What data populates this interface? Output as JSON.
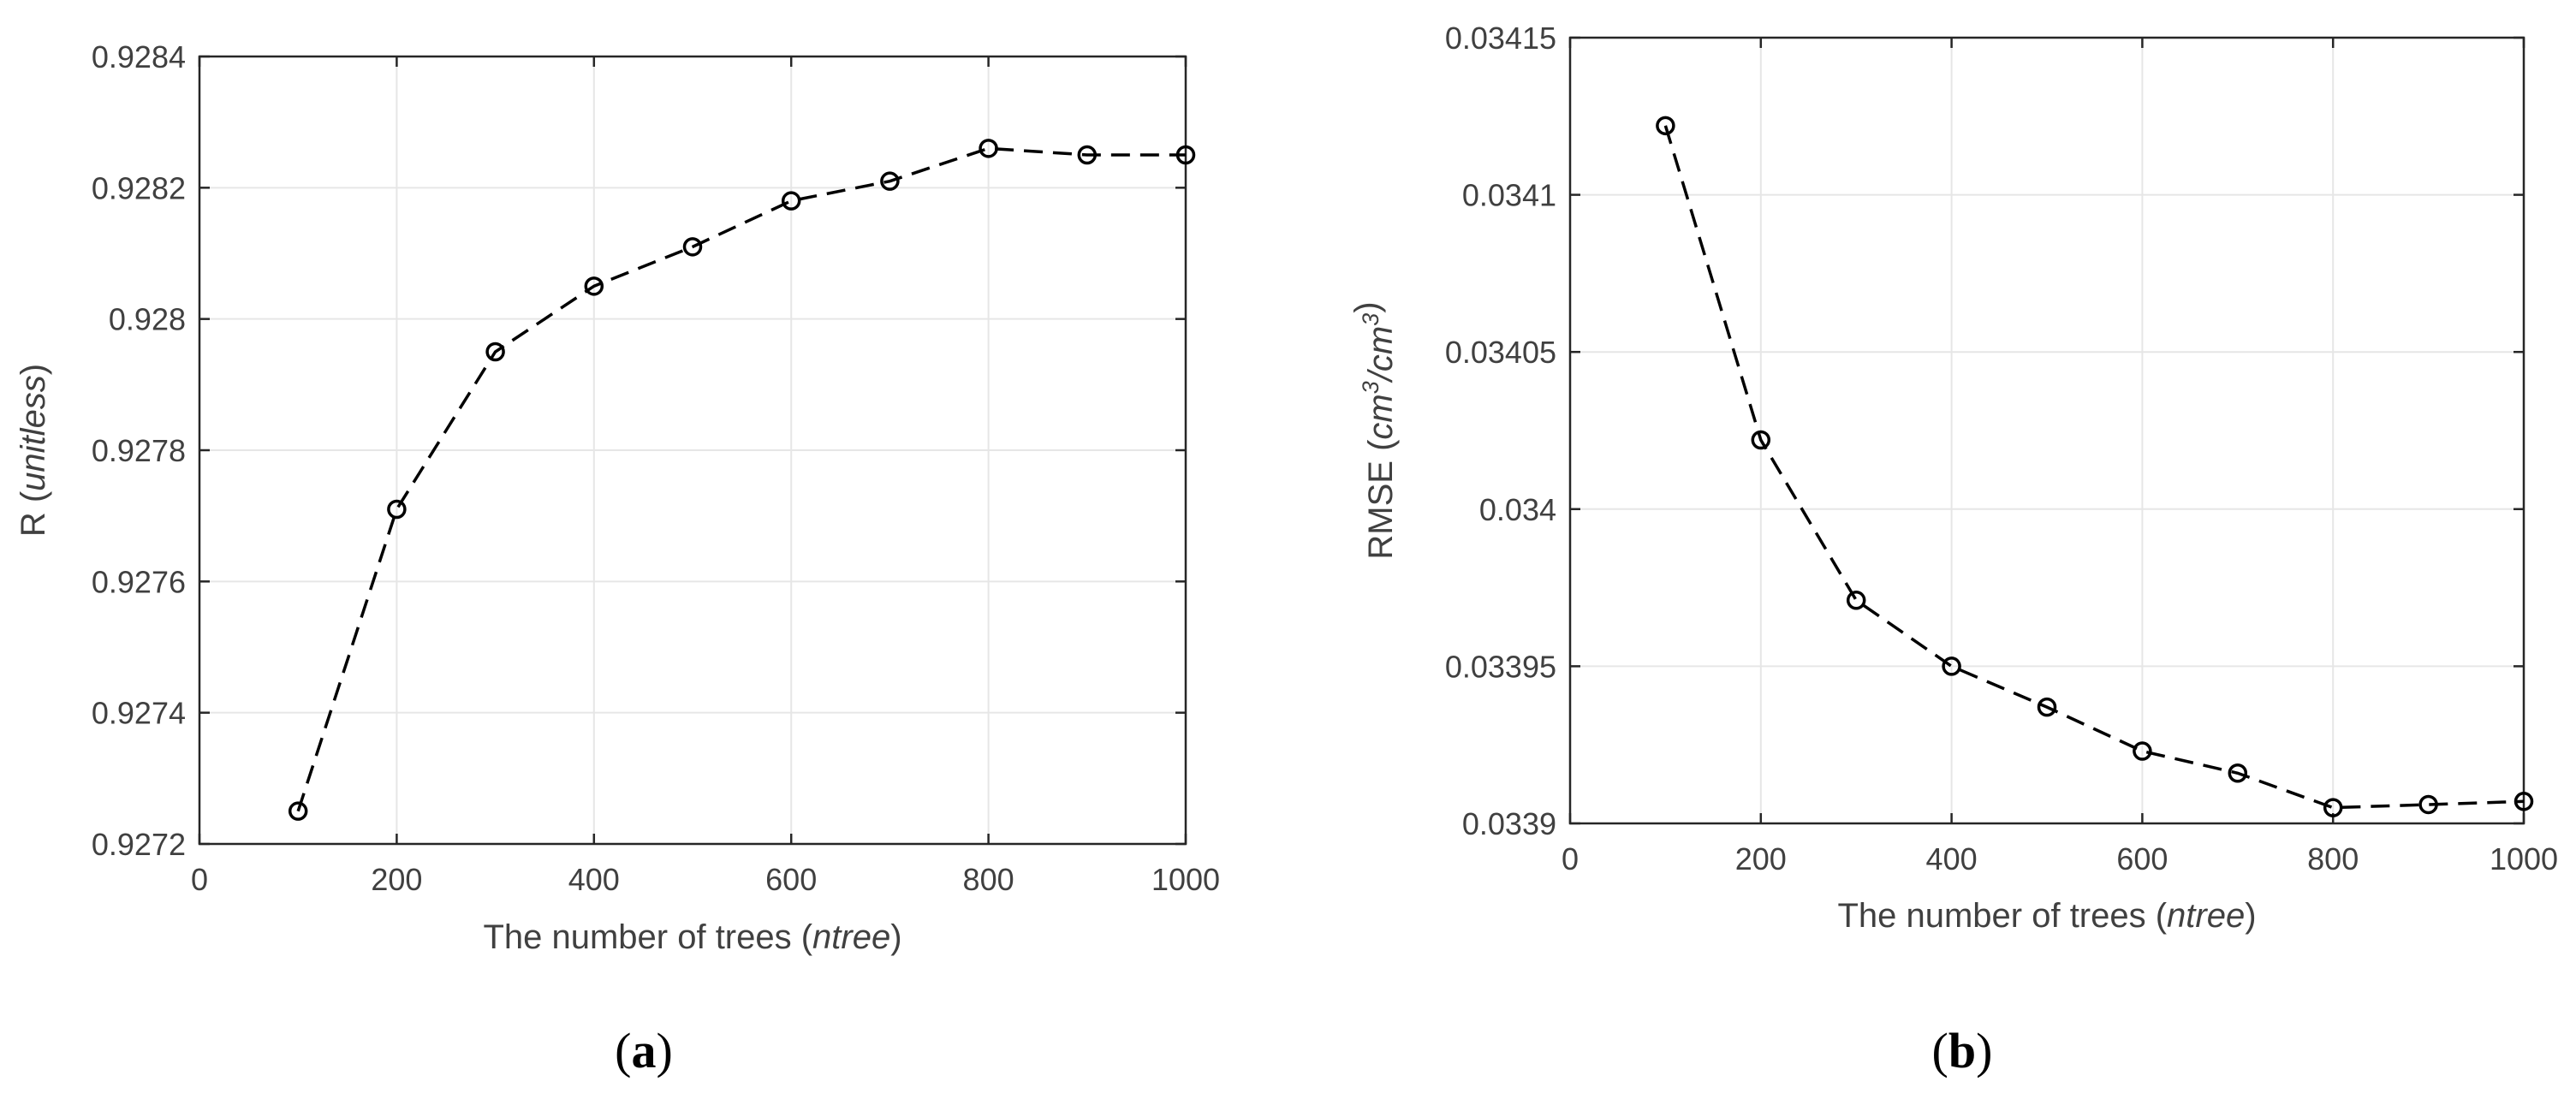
{
  "chart_data": [
    {
      "type": "line",
      "panel_label": "a",
      "x": [
        100,
        200,
        300,
        400,
        500,
        600,
        700,
        800,
        900,
        1000
      ],
      "series": [
        {
          "values": [
            0.92725,
            0.92771,
            0.92795,
            0.92805,
            0.92811,
            0.92818,
            0.92821,
            0.92826,
            0.92825,
            0.92825
          ]
        }
      ],
      "xlabel": "The number of trees (",
      "xlabel_italic": "ntree",
      "xlabel_suffix": ")",
      "ylabel": "R (",
      "ylabel_italic": "unitless",
      "ylabel_suffix": ")",
      "xlim": [
        0,
        1000
      ],
      "ylim": [
        0.9272,
        0.9284
      ],
      "xticks": [
        0,
        200,
        400,
        600,
        800,
        1000
      ],
      "yticks": [
        0.9272,
        0.9274,
        0.9276,
        0.9278,
        0.928,
        0.9282,
        0.9284
      ],
      "xtick_labels": [
        "0",
        "200",
        "400",
        "600",
        "800",
        "1000"
      ],
      "ytick_labels": [
        "0.9272",
        "0.9274",
        "0.9276",
        "0.9278",
        "0.928",
        "0.9282",
        "0.9284"
      ],
      "grid": true,
      "line_style": "dashed",
      "marker": "open-circle",
      "line_color": "#000000"
    },
    {
      "type": "line",
      "panel_label": "b",
      "x": [
        100,
        200,
        300,
        400,
        500,
        600,
        700,
        800,
        900,
        1000
      ],
      "series": [
        {
          "values": [
            0.034122,
            0.034022,
            0.033971,
            0.03395,
            0.033937,
            0.033923,
            0.033916,
            0.033905,
            0.033906,
            0.033907
          ]
        }
      ],
      "xlabel": "The number of trees (",
      "xlabel_italic": "ntree",
      "xlabel_suffix": ")",
      "ylabel": "RMSE (",
      "ylabel_italic_parts": [
        "cm",
        "3",
        "/cm",
        "3"
      ],
      "ylabel_suffix": ")",
      "xlim": [
        0,
        1000
      ],
      "ylim": [
        0.0339,
        0.03415
      ],
      "xticks": [
        0,
        200,
        400,
        600,
        800,
        1000
      ],
      "yticks": [
        0.0339,
        0.03395,
        0.034,
        0.03405,
        0.0341,
        0.03415
      ],
      "xtick_labels": [
        "0",
        "200",
        "400",
        "600",
        "800",
        "1000"
      ],
      "ytick_labels": [
        "0.0339",
        "0.03395",
        "0.034",
        "0.03405",
        "0.0341",
        "0.03415"
      ],
      "grid": true,
      "line_style": "dashed",
      "marker": "open-circle",
      "line_color": "#000000"
    }
  ]
}
